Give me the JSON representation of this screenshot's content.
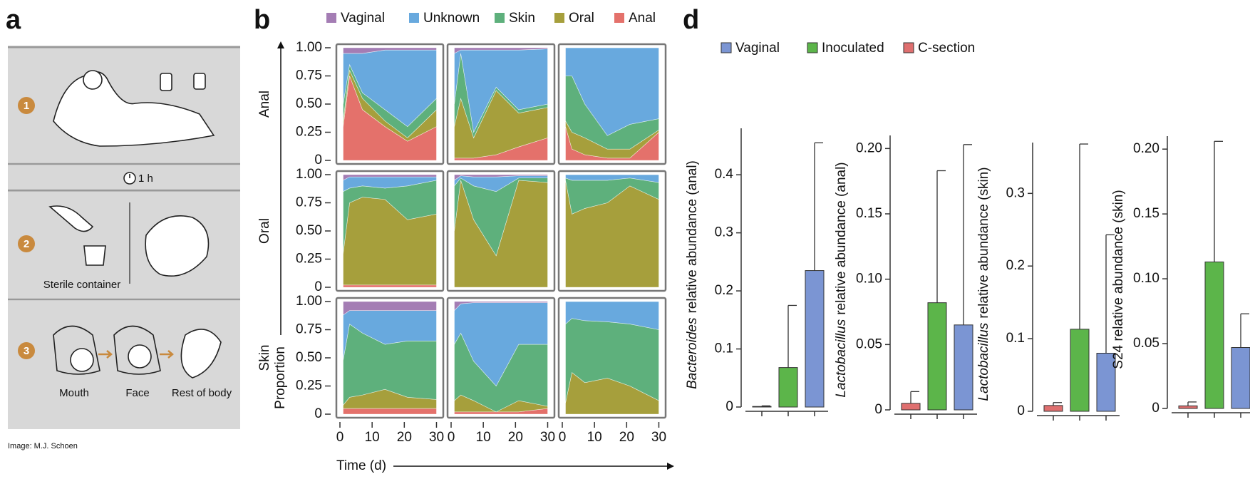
{
  "panel_labels": [
    "a",
    "b",
    "d"
  ],
  "illustration": {
    "steps": [
      "1",
      "2",
      "3"
    ],
    "wait": "1 h",
    "container": "Sterile container",
    "sites": [
      "Mouth",
      "Face",
      "Rest of body"
    ],
    "credit": "Image: M.J. Schoen"
  },
  "chart_data": [
    {
      "type": "stacked-area",
      "series": [
        {
          "name": "Vaginal",
          "color": "#a47db4"
        },
        {
          "name": "Unknown",
          "color": "#68a9de"
        },
        {
          "name": "Skin",
          "color": "#5eb07c"
        },
        {
          "name": "Oral",
          "color": "#a69f3c"
        },
        {
          "name": "Anal",
          "color": "#e4716b"
        }
      ],
      "rows": [
        "Anal",
        "Oral",
        "Skin"
      ],
      "x": [
        1,
        3,
        7,
        14,
        21,
        30
      ],
      "xlim": [
        0,
        31
      ],
      "xticks": [
        0,
        10,
        20,
        30
      ],
      "ylim": [
        0,
        1
      ],
      "yticks": [
        0,
        0.25,
        {
          "value": 0.5,
          "label": "0.50"
        },
        0.75,
        {
          "value": 1,
          "label": "1.00"
        }
      ],
      "xlabel": "Time (d)",
      "ylabel": "Proportion",
      "panels": [
        [
          [
            [
              0.05,
              0.05,
              0.05,
              0.02,
              0.02,
              0.02
            ],
            [
              0.45,
              0.1,
              0.35,
              0.53,
              0.68,
              0.43
            ],
            [
              0.15,
              0.05,
              0.05,
              0.1,
              0.1,
              0.1
            ],
            [
              0.05,
              0.05,
              0.1,
              0.05,
              0.03,
              0.15
            ],
            [
              0.3,
              0.75,
              0.45,
              0.3,
              0.17,
              0.3
            ]
          ],
          [
            [
              0.05,
              0.02,
              0.02,
              0.02,
              0.02,
              0.01
            ],
            [
              0.45,
              0.03,
              0.73,
              0.33,
              0.53,
              0.49
            ],
            [
              0.2,
              0.4,
              0.05,
              0.03,
              0.03,
              0.03
            ],
            [
              0.28,
              0.53,
              0.18,
              0.57,
              0.3,
              0.27
            ],
            [
              0.02,
              0.02,
              0.02,
              0.05,
              0.12,
              0.2
            ]
          ],
          [
            [
              0,
              0,
              0,
              0,
              0,
              0
            ],
            [
              0.25,
              0.25,
              0.5,
              0.78,
              0.68,
              0.63
            ],
            [
              0.4,
              0.5,
              0.3,
              0.12,
              0.22,
              0.1
            ],
            [
              0.05,
              0.15,
              0.15,
              0.08,
              0.08,
              0.02
            ],
            [
              0.3,
              0.1,
              0.05,
              0.02,
              0.02,
              0.25
            ]
          ]
        ],
        [
          [
            [
              0.05,
              0.02,
              0.02,
              0.02,
              0.02,
              0.02
            ],
            [
              0.1,
              0.1,
              0.08,
              0.1,
              0.08,
              0.03
            ],
            [
              0.55,
              0.13,
              0.1,
              0.1,
              0.3,
              0.3
            ],
            [
              0.28,
              0.73,
              0.78,
              0.76,
              0.58,
              0.63
            ],
            [
              0.02,
              0.02,
              0.02,
              0.02,
              0.02,
              0.02
            ]
          ],
          [
            [
              0.05,
              0.01,
              0.02,
              0.02,
              0.01,
              0.01
            ],
            [
              0.05,
              0.02,
              0.08,
              0.13,
              0.02,
              0.02
            ],
            [
              0.4,
              0.02,
              0.3,
              0.57,
              0.02,
              0.04
            ],
            [
              0.5,
              0.95,
              0.6,
              0.28,
              0.95,
              0.93
            ],
            [
              0,
              0,
              0,
              0,
              0,
              0
            ]
          ],
          [
            [
              0,
              0,
              0,
              0,
              0,
              0
            ],
            [
              0.03,
              0.05,
              0.05,
              0.05,
              0.03,
              0.07
            ],
            [
              0.02,
              0.3,
              0.25,
              0.2,
              0.07,
              0.15
            ],
            [
              0.95,
              0.65,
              0.7,
              0.75,
              0.9,
              0.78
            ],
            [
              0,
              0,
              0,
              0,
              0,
              0
            ]
          ]
        ],
        [
          [
            [
              0.12,
              0.08,
              0.08,
              0.08,
              0.08,
              0.08
            ],
            [
              0.4,
              0.12,
              0.2,
              0.3,
              0.27,
              0.27
            ],
            [
              0.4,
              0.65,
              0.55,
              0.4,
              0.5,
              0.52
            ],
            [
              0.03,
              0.1,
              0.12,
              0.17,
              0.1,
              0.08
            ],
            [
              0.05,
              0.05,
              0.05,
              0.05,
              0.05,
              0.05
            ]
          ],
          [
            [
              0.08,
              0.02,
              0.01,
              0.01,
              0.01,
              0.01
            ],
            [
              0.3,
              0.26,
              0.52,
              0.74,
              0.37,
              0.37
            ],
            [
              0.5,
              0.55,
              0.35,
              0.23,
              0.5,
              0.55
            ],
            [
              0.1,
              0.15,
              0.1,
              0,
              0.1,
              0.02
            ],
            [
              0.02,
              0.02,
              0.02,
              0.02,
              0.02,
              0.05
            ]
          ],
          [
            [
              0,
              0,
              0,
              0,
              0,
              0
            ],
            [
              0.2,
              0.15,
              0.17,
              0.18,
              0.2,
              0.25
            ],
            [
              0.7,
              0.48,
              0.55,
              0.5,
              0.55,
              0.63
            ],
            [
              0.1,
              0.37,
              0.28,
              0.32,
              0.25,
              0.12
            ],
            [
              0,
              0,
              0,
              0,
              0,
              0
            ]
          ]
        ]
      ]
    },
    {
      "type": "bar",
      "series": [
        {
          "name": "Vaginal",
          "color": "#7b95d3"
        },
        {
          "name": "Inoculated",
          "color": "#5cb54a"
        },
        {
          "name": "C-section",
          "color": "#df6f6f"
        }
      ],
      "panels": [
        {
          "ylabel_italic": "Bacteroides",
          "ylabel": "relative abundance (anal)",
          "ylim": [
            0,
            0.48
          ],
          "yticks": [
            0,
            0.1,
            0.2,
            0.3,
            0.4
          ],
          "values": [
            0.235,
            0.068,
            0.001
          ],
          "errors": [
            0.22,
            0.107,
            0.001
          ]
        },
        {
          "ylabel_italic": "Lactobacillus",
          "ylabel": "relative abundance (anal)",
          "ylim": [
            0,
            0.21
          ],
          "yticks": [
            0,
            0.05,
            {
              "value": 0.1,
              "label": "0.10"
            },
            0.15,
            {
              "value": 0.2,
              "label": "0.20"
            }
          ],
          "values": [
            0.065,
            0.082,
            0.005
          ],
          "errors": [
            0.138,
            0.101,
            0.009
          ]
        },
        {
          "ylabel_italic": "Lactobacillus",
          "ylabel": "relative abundance (skin)",
          "ylim": [
            0,
            0.37
          ],
          "yticks": [
            0,
            0.1,
            0.2,
            0.3
          ],
          "values": [
            0.08,
            0.113,
            0.008
          ],
          "errors": [
            0.163,
            0.255,
            0.004
          ]
        },
        {
          "ylabel": "S24 relative abundance (skin)",
          "ylim": [
            0,
            0.21
          ],
          "yticks": [
            0,
            0.05,
            {
              "value": 0.1,
              "label": "0.10"
            },
            0.15,
            {
              "value": 0.2,
              "label": "0.20"
            }
          ],
          "values": [
            0.047,
            0.113,
            0.002
          ],
          "errors": [
            0.026,
            0.093,
            0.003
          ]
        }
      ]
    }
  ]
}
